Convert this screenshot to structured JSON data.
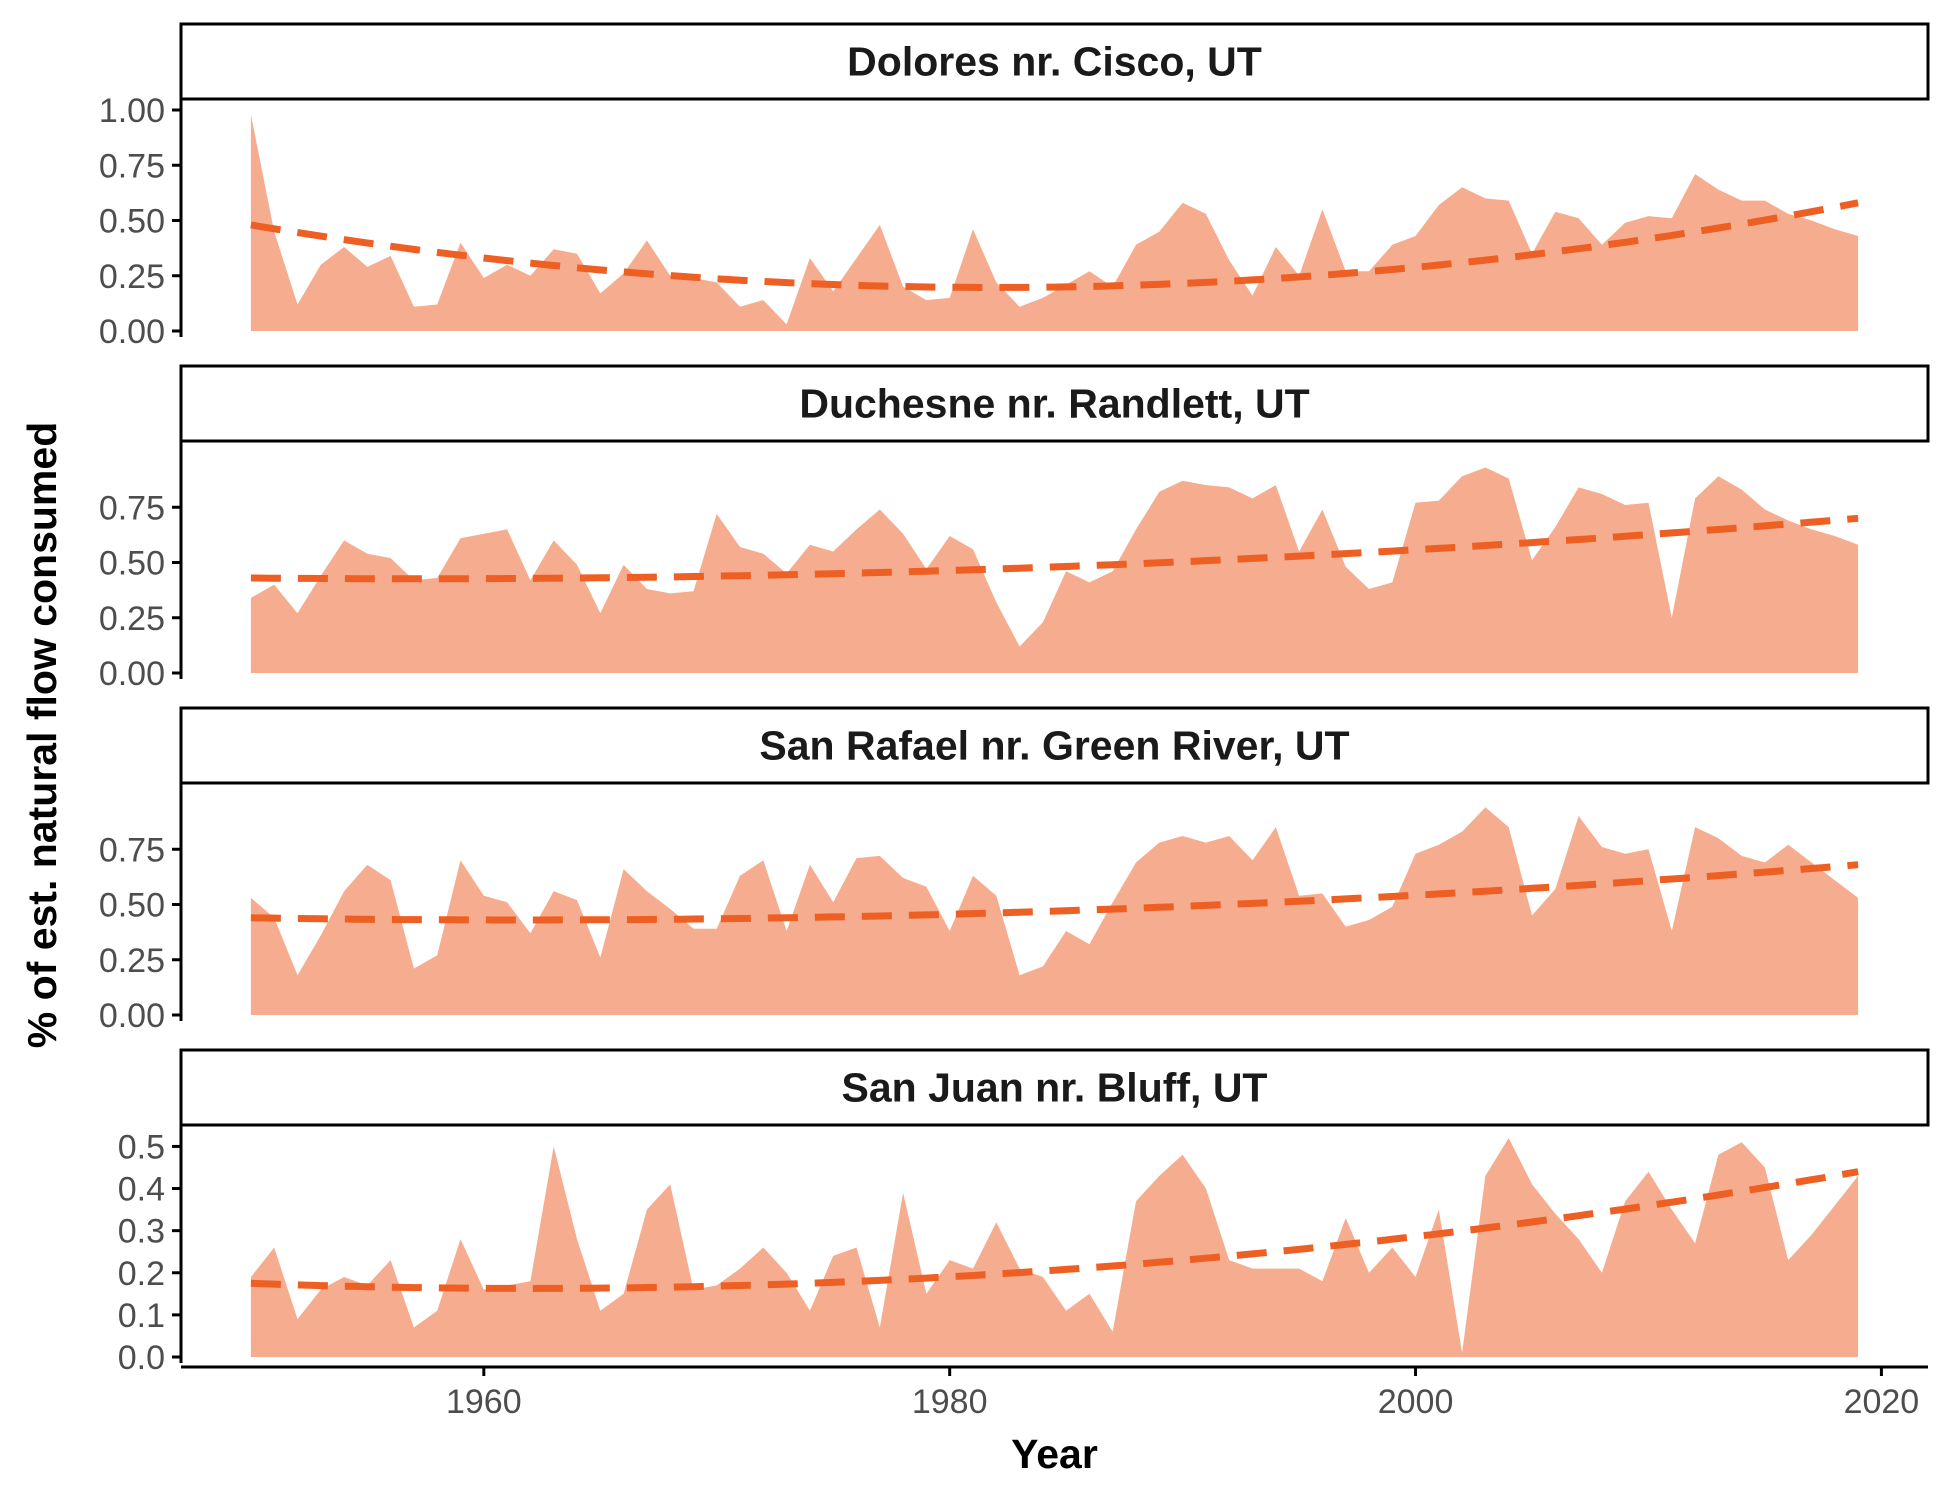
{
  "colors": {
    "area_fill": "#f6ad8f",
    "trend_line": "#ee5f23",
    "axis": "#000000",
    "tick_label": "#4d4d4d"
  },
  "chart_data": {
    "type": "area",
    "xlabel": "Year",
    "ylabel": "% of est. natural flow consumed",
    "xlim": [
      1947,
      2022
    ],
    "x_ticks": [
      1960,
      1980,
      2000,
      2020
    ],
    "grid": false,
    "trend_line": "dashed",
    "x": [
      1950,
      1951,
      1952,
      1953,
      1954,
      1955,
      1956,
      1957,
      1958,
      1959,
      1960,
      1961,
      1962,
      1963,
      1964,
      1965,
      1966,
      1967,
      1968,
      1969,
      1970,
      1971,
      1972,
      1973,
      1974,
      1975,
      1976,
      1977,
      1978,
      1979,
      1980,
      1981,
      1982,
      1983,
      1984,
      1985,
      1986,
      1987,
      1988,
      1989,
      1990,
      1991,
      1992,
      1993,
      1994,
      1995,
      1996,
      1997,
      1998,
      1999,
      2000,
      2001,
      2002,
      2003,
      2004,
      2005,
      2006,
      2007,
      2008,
      2009,
      2010,
      2011,
      2012,
      2013,
      2014,
      2015,
      2016,
      2017,
      2018,
      2019
    ],
    "panels": [
      {
        "title": "Dolores nr. Cisco, UT",
        "ylim": [
          0,
          1.0
        ],
        "y_ticks": [
          "0.00",
          "0.25",
          "0.50",
          "0.75",
          "1.00"
        ],
        "values": [
          0.98,
          0.45,
          0.12,
          0.3,
          0.38,
          0.29,
          0.34,
          0.11,
          0.12,
          0.4,
          0.24,
          0.3,
          0.25,
          0.37,
          0.35,
          0.17,
          0.26,
          0.41,
          0.25,
          0.24,
          0.22,
          0.11,
          0.14,
          0.03,
          0.33,
          0.18,
          0.33,
          0.48,
          0.2,
          0.14,
          0.15,
          0.46,
          0.22,
          0.11,
          0.15,
          0.21,
          0.27,
          0.2,
          0.39,
          0.45,
          0.58,
          0.53,
          0.32,
          0.16,
          0.38,
          0.25,
          0.55,
          0.27,
          0.27,
          0.39,
          0.43,
          0.57,
          0.65,
          0.6,
          0.59,
          0.35,
          0.54,
          0.51,
          0.39,
          0.49,
          0.52,
          0.51,
          0.71,
          0.64,
          0.59,
          0.59,
          0.53,
          0.5,
          0.46,
          0.43
        ],
        "trend": [
          0.48,
          0.23,
          0.58
        ]
      },
      {
        "title": "Duchesne nr. Randlett, UT",
        "ylim": [
          0,
          1.0
        ],
        "y_ticks": [
          "0.00",
          "0.25",
          "0.50",
          "0.75"
        ],
        "values": [
          0.34,
          0.4,
          0.27,
          0.44,
          0.6,
          0.54,
          0.52,
          0.42,
          0.43,
          0.61,
          0.63,
          0.65,
          0.42,
          0.6,
          0.49,
          0.27,
          0.49,
          0.38,
          0.36,
          0.37,
          0.72,
          0.57,
          0.54,
          0.45,
          0.58,
          0.55,
          0.65,
          0.74,
          0.63,
          0.47,
          0.62,
          0.56,
          0.32,
          0.12,
          0.23,
          0.46,
          0.41,
          0.46,
          0.65,
          0.82,
          0.87,
          0.85,
          0.84,
          0.79,
          0.85,
          0.55,
          0.74,
          0.48,
          0.38,
          0.41,
          0.77,
          0.78,
          0.89,
          0.93,
          0.88,
          0.51,
          0.66,
          0.84,
          0.81,
          0.76,
          0.77,
          0.25,
          0.79,
          0.89,
          0.83,
          0.74,
          0.69,
          0.65,
          0.62,
          0.58
        ],
        "trend": [
          0.43,
          0.48,
          0.7
        ]
      },
      {
        "title": "San Rafael nr. Green River, UT",
        "ylim": [
          0,
          1.0
        ],
        "y_ticks": [
          "0.00",
          "0.25",
          "0.50",
          "0.75"
        ],
        "values": [
          0.53,
          0.44,
          0.18,
          0.36,
          0.56,
          0.68,
          0.61,
          0.21,
          0.27,
          0.7,
          0.54,
          0.51,
          0.37,
          0.56,
          0.52,
          0.26,
          0.66,
          0.56,
          0.48,
          0.39,
          0.39,
          0.63,
          0.7,
          0.38,
          0.68,
          0.51,
          0.71,
          0.72,
          0.62,
          0.58,
          0.38,
          0.63,
          0.54,
          0.18,
          0.22,
          0.38,
          0.32,
          0.51,
          0.69,
          0.78,
          0.81,
          0.78,
          0.81,
          0.7,
          0.85,
          0.54,
          0.55,
          0.4,
          0.43,
          0.49,
          0.73,
          0.77,
          0.83,
          0.94,
          0.85,
          0.45,
          0.57,
          0.9,
          0.76,
          0.73,
          0.75,
          0.38,
          0.85,
          0.8,
          0.72,
          0.69,
          0.77,
          0.69,
          0.61,
          0.53
        ],
        "trend": [
          0.44,
          0.47,
          0.68
        ]
      },
      {
        "title": "San Juan nr. Bluff, UT",
        "ylim": [
          0,
          0.52
        ],
        "y_ticks": [
          "0.0",
          "0.1",
          "0.2",
          "0.3",
          "0.4",
          "0.5"
        ],
        "values": [
          0.19,
          0.26,
          0.09,
          0.16,
          0.19,
          0.17,
          0.23,
          0.07,
          0.11,
          0.28,
          0.16,
          0.17,
          0.18,
          0.5,
          0.28,
          0.11,
          0.15,
          0.35,
          0.41,
          0.16,
          0.17,
          0.21,
          0.26,
          0.2,
          0.11,
          0.24,
          0.26,
          0.07,
          0.39,
          0.15,
          0.23,
          0.21,
          0.32,
          0.21,
          0.19,
          0.11,
          0.15,
          0.06,
          0.37,
          0.43,
          0.48,
          0.4,
          0.23,
          0.21,
          0.21,
          0.21,
          0.18,
          0.33,
          0.2,
          0.26,
          0.19,
          0.35,
          0.01,
          0.43,
          0.52,
          0.41,
          0.34,
          0.28,
          0.2,
          0.37,
          0.44,
          0.35,
          0.27,
          0.48,
          0.51,
          0.45,
          0.23,
          0.29,
          0.36,
          0.43
        ],
        "trend": [
          0.175,
          0.206,
          0.44
        ]
      }
    ]
  }
}
